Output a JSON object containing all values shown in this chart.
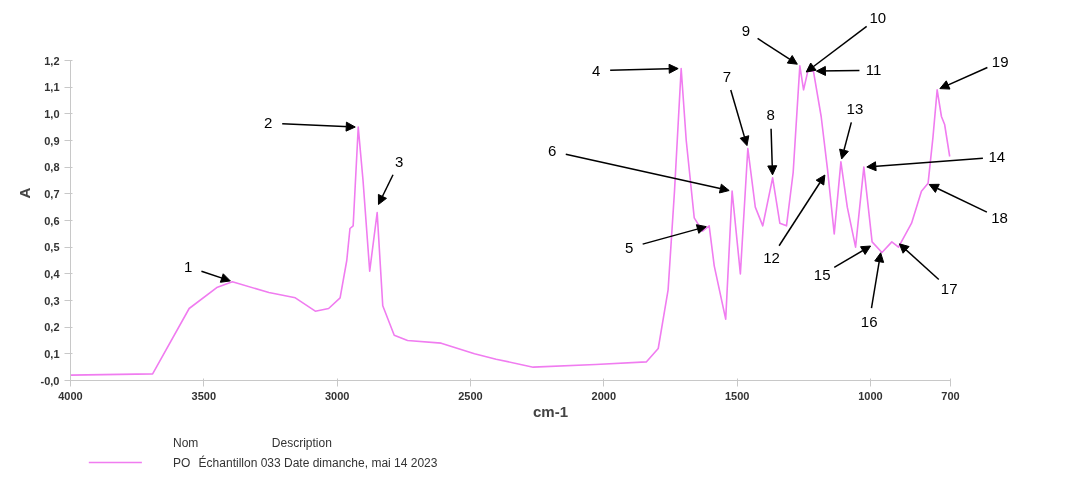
{
  "chart_data": {
    "type": "line",
    "xlabel": "cm-1",
    "ylabel": "A",
    "xlim": [
      4000,
      700
    ],
    "ylim": [
      0,
      1.2
    ],
    "xticks": [
      4000,
      3500,
      3000,
      2500,
      2000,
      1500,
      1000,
      700
    ],
    "yticks": [
      {
        "value": 0,
        "label": "-0,0"
      },
      {
        "value": 0.1,
        "label": "0,1"
      },
      {
        "value": 0.2,
        "label": "0,2"
      },
      {
        "value": 0.3,
        "label": "0,3"
      },
      {
        "value": 0.4,
        "label": "0,4"
      },
      {
        "value": 0.5,
        "label": "0,5"
      },
      {
        "value": 0.6,
        "label": "0,6"
      },
      {
        "value": 0.7,
        "label": "0,7"
      },
      {
        "value": 0.8,
        "label": "0,8"
      },
      {
        "value": 0.9,
        "label": "0,9"
      },
      {
        "value": 1.0,
        "label": "1,0"
      },
      {
        "value": 1.1,
        "label": "1,1"
      },
      {
        "value": 1.2,
        "label": "1,2"
      }
    ],
    "grid": false,
    "legend": "bottom",
    "legend_title": "Nom",
    "series": [
      {
        "name": "PO",
        "color": "#f07cf0",
        "x": [
          4000,
          3692,
          3555,
          3449,
          3393,
          3256,
          3157,
          3082,
          3032,
          2989,
          2964,
          2952,
          2940,
          2921,
          2903,
          2878,
          2850,
          2829,
          2786,
          2736,
          2610,
          2485,
          2404,
          2265,
          2031,
          1840,
          1796,
          1759,
          1735,
          1710,
          1691,
          1661,
          1630,
          1605,
          1586,
          1543,
          1519,
          1500,
          1488,
          1460,
          1432,
          1404,
          1367,
          1340,
          1315,
          1290,
          1265,
          1251,
          1235,
          1214,
          1185,
          1161,
          1136,
          1111,
          1087,
          1056,
          1025,
          994,
          957,
          920,
          895,
          846,
          809,
          784,
          766,
          750,
          734,
          722,
          703
        ],
        "values": [
          0.02,
          0.025,
          0.27,
          0.35,
          0.37,
          0.33,
          0.31,
          0.26,
          0.27,
          0.31,
          0.45,
          0.57,
          0.58,
          0.95,
          0.75,
          0.41,
          0.63,
          0.28,
          0.17,
          0.15,
          0.14,
          0.1,
          0.08,
          0.05,
          0.06,
          0.07,
          0.12,
          0.34,
          0.71,
          1.17,
          0.9,
          0.61,
          0.56,
          0.58,
          0.43,
          0.23,
          0.71,
          0.52,
          0.4,
          0.87,
          0.65,
          0.58,
          0.76,
          0.59,
          0.58,
          0.78,
          1.18,
          1.09,
          1.16,
          1.16,
          0.99,
          0.79,
          0.55,
          0.82,
          0.65,
          0.5,
          0.8,
          0.52,
          0.48,
          0.52,
          0.5,
          0.59,
          0.71,
          0.74,
          0.91,
          1.09,
          0.99,
          0.96,
          0.84
        ]
      }
    ],
    "annotations": [
      {
        "text": "1",
        "x": 3390,
        "y": 0.37
      },
      {
        "text": "2",
        "x": 2921,
        "y": 0.95
      },
      {
        "text": "3",
        "x": 2850,
        "y": 0.65
      },
      {
        "text": "4",
        "x": 1710,
        "y": 1.17
      },
      {
        "text": "5",
        "x": 1605,
        "y": 0.58
      },
      {
        "text": "6",
        "x": 1519,
        "y": 0.71
      },
      {
        "text": "7",
        "x": 1460,
        "y": 0.87
      },
      {
        "text": "8",
        "x": 1367,
        "y": 0.76
      },
      {
        "text": "9",
        "x": 1265,
        "y": 1.18
      },
      {
        "text": "10",
        "x": 1250,
        "y": 1.15
      },
      {
        "text": "11",
        "x": 1214,
        "y": 1.16
      },
      {
        "text": "12",
        "x": 1165,
        "y": 0.78
      },
      {
        "text": "13",
        "x": 1111,
        "y": 0.82
      },
      {
        "text": "14",
        "x": 1025,
        "y": 0.8
      },
      {
        "text": "15",
        "x": 990,
        "y": 0.51
      },
      {
        "text": "16",
        "x": 960,
        "y": 0.49
      },
      {
        "text": "17",
        "x": 900,
        "y": 0.52
      },
      {
        "text": "18",
        "x": 790,
        "y": 0.74
      },
      {
        "text": "19",
        "x": 750,
        "y": 1.09
      },
      "Description",
      "Échantillon 033 Date dimanche, mai 14 2023"
    ]
  }
}
